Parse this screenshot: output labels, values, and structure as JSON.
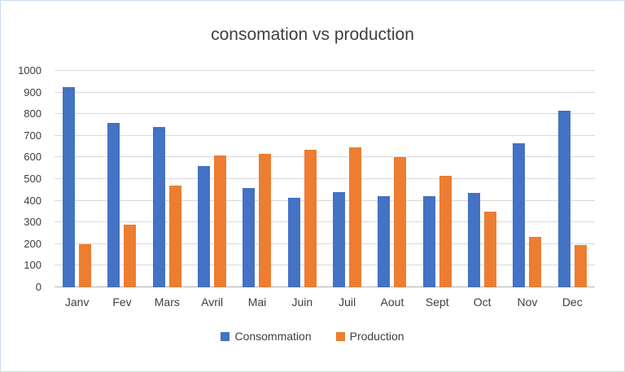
{
  "chart_data": {
    "type": "bar",
    "title": "consomation vs production",
    "categories": [
      "Janv",
      "Fev",
      "Mars",
      "Avril",
      "Mai",
      "Juin",
      "Juil",
      "Aout",
      "Sept",
      "Oct",
      "Nov",
      "Dec"
    ],
    "series": [
      {
        "name": "Consommation",
        "color": "#4472C4",
        "values": [
          925,
          760,
          740,
          560,
          460,
          415,
          440,
          420,
          420,
          435,
          665,
          815
        ]
      },
      {
        "name": "Production",
        "color": "#ED7D31",
        "values": [
          200,
          290,
          470,
          610,
          615,
          635,
          645,
          600,
          515,
          350,
          235,
          195
        ]
      }
    ],
    "ylim": [
      0,
      1000
    ],
    "ytick_step": 100,
    "grid": true,
    "legend_position": "bottom"
  }
}
